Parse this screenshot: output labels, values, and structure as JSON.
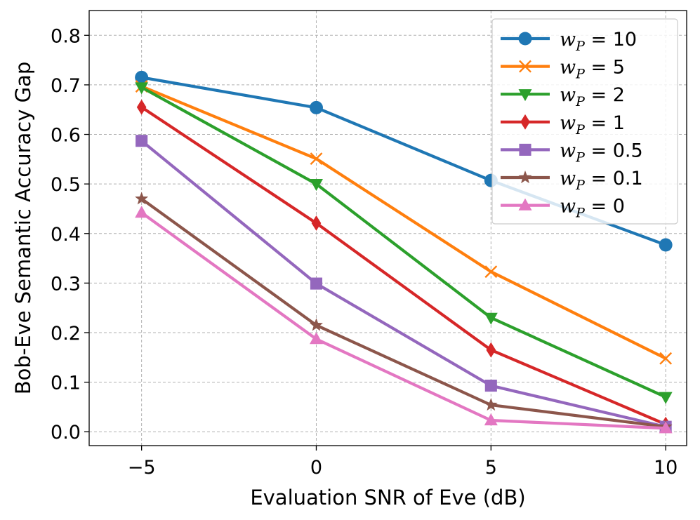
{
  "chart_data": {
    "type": "line",
    "xlabel": "Evaluation SNR of Eve (dB)",
    "ylabel": "Bob-Eve Semantic Accuracy Gap",
    "x": [
      -5,
      0,
      5,
      10
    ],
    "xlim": [
      -6.5,
      10.6
    ],
    "ylim": [
      -0.028,
      0.85
    ],
    "xticks": [
      -5,
      0,
      5,
      10
    ],
    "xtick_labels": [
      "−5",
      "0",
      "5",
      "10"
    ],
    "yticks": [
      0.0,
      0.1,
      0.2,
      0.3,
      0.4,
      0.5,
      0.6,
      0.7,
      0.8
    ],
    "ytick_labels": [
      "0.0",
      "0.1",
      "0.2",
      "0.3",
      "0.4",
      "0.5",
      "0.6",
      "0.7",
      "0.8"
    ],
    "grid": true,
    "legend_position": "top-right",
    "series": [
      {
        "name": "w_P = 10",
        "legend_base": "w",
        "legend_sub": "P",
        "legend_value": " = 10",
        "color": "#1f77b4",
        "marker": "circle",
        "values": [
          0.715,
          0.654,
          0.507,
          0.377
        ]
      },
      {
        "name": "w_P = 5",
        "legend_base": "w",
        "legend_sub": "P",
        "legend_value": " = 5",
        "color": "#ff7f0e",
        "marker": "x",
        "values": [
          0.697,
          0.551,
          0.323,
          0.148
        ]
      },
      {
        "name": "w_P = 2",
        "legend_base": "w",
        "legend_sub": "P",
        "legend_value": " = 2",
        "color": "#2ca02c",
        "marker": "triangle-down",
        "values": [
          0.695,
          0.5,
          0.23,
          0.07
        ]
      },
      {
        "name": "w_P = 1",
        "legend_base": "w",
        "legend_sub": "P",
        "legend_value": " = 1",
        "color": "#d62728",
        "marker": "diamond",
        "values": [
          0.655,
          0.421,
          0.165,
          0.015
        ]
      },
      {
        "name": "w_P = 0.5",
        "legend_base": "w",
        "legend_sub": "P",
        "legend_value": " = 0.5",
        "color": "#9467bd",
        "marker": "square",
        "values": [
          0.587,
          0.299,
          0.093,
          0.01
        ]
      },
      {
        "name": "w_P = 0.1",
        "legend_base": "w",
        "legend_sub": "P",
        "legend_value": " = 0.1",
        "color": "#8c564b",
        "marker": "star",
        "values": [
          0.47,
          0.215,
          0.054,
          0.01
        ]
      },
      {
        "name": "w_P = 0",
        "legend_base": "w",
        "legend_sub": "P",
        "legend_value": " = 0",
        "color": "#e377c2",
        "marker": "triangle-up",
        "values": [
          0.442,
          0.187,
          0.023,
          0.007
        ]
      }
    ]
  }
}
